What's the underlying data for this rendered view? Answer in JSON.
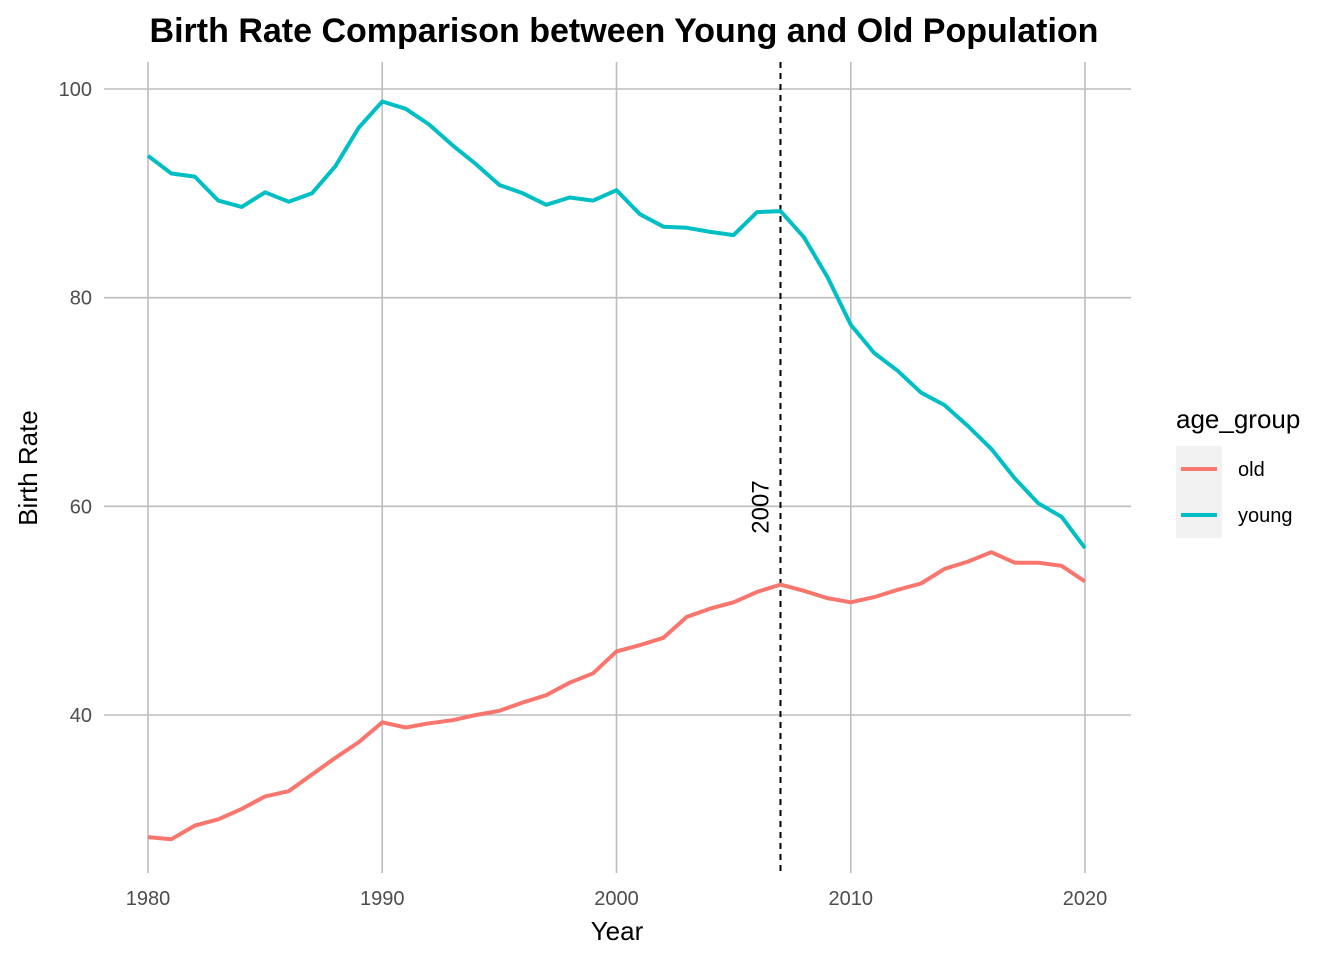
{
  "chart_data": {
    "type": "line",
    "title": "Birth Rate Comparison between Young and Old Population",
    "xlabel": "Year",
    "ylabel": "Birth Rate",
    "xlim": [
      1980,
      2020
    ],
    "ylim": [
      25.5,
      101.5
    ],
    "xticks": [
      1980,
      1990,
      2000,
      2010,
      2020
    ],
    "yticks": [
      40,
      60,
      80,
      100
    ],
    "grid": true,
    "legend": {
      "title": "age_group",
      "position": "right"
    },
    "x": [
      1980,
      1981,
      1982,
      1983,
      1984,
      1985,
      1986,
      1987,
      1988,
      1989,
      1990,
      1991,
      1992,
      1993,
      1994,
      1995,
      1996,
      1997,
      1998,
      1999,
      2000,
      2001,
      2002,
      2003,
      2004,
      2005,
      2006,
      2007,
      2008,
      2009,
      2010,
      2011,
      2012,
      2013,
      2014,
      2015,
      2016,
      2017,
      2018,
      2019,
      2020
    ],
    "series": [
      {
        "name": "old",
        "color": "#F8766D",
        "values": [
          28.3,
          28.1,
          29.4,
          30.0,
          31.0,
          32.2,
          32.7,
          34.3,
          35.9,
          37.4,
          39.3,
          38.8,
          39.2,
          39.5,
          40.0,
          40.4,
          41.2,
          41.9,
          43.1,
          44.0,
          46.1,
          46.7,
          47.4,
          49.4,
          50.2,
          50.8,
          51.8,
          52.5,
          51.9,
          51.2,
          50.8,
          51.3,
          52.0,
          52.6,
          54.0,
          54.7,
          55.6,
          54.6,
          54.6,
          54.3,
          52.8
        ]
      },
      {
        "name": "young",
        "color": "#00BFC4",
        "values": [
          93.6,
          91.9,
          91.6,
          89.3,
          88.7,
          90.1,
          89.2,
          90.0,
          92.6,
          96.3,
          98.8,
          98.1,
          96.6,
          94.6,
          92.8,
          90.8,
          90.0,
          88.9,
          89.6,
          89.3,
          90.3,
          88.0,
          86.8,
          86.7,
          86.3,
          86.0,
          88.2,
          88.3,
          85.8,
          82.0,
          77.4,
          74.7,
          73.0,
          70.9,
          69.7,
          67.7,
          65.5,
          62.7,
          60.3,
          59.0,
          56.0
        ]
      }
    ],
    "annotations": [
      {
        "x": 2007,
        "label": "2007",
        "style": "dashed-vertical-line"
      }
    ]
  }
}
